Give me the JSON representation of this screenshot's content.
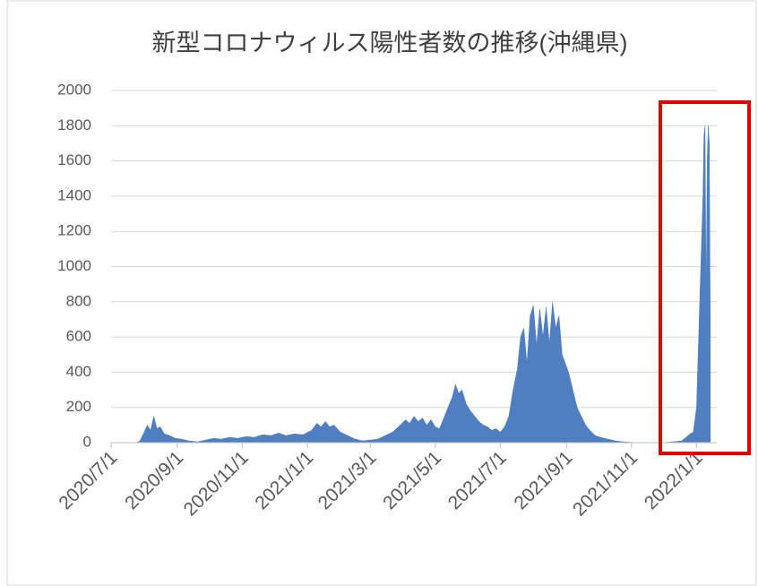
{
  "chart_data": {
    "type": "area",
    "title": "新型コロナウィルス陽性者数の推移(沖縄県)",
    "color": "#4f7fc0",
    "grid": true,
    "ylim": [
      0,
      2000
    ],
    "yticks": [
      0,
      200,
      400,
      600,
      800,
      1000,
      1200,
      1400,
      1600,
      1800,
      2000
    ],
    "xlim": [
      "2020-07-01",
      "2022-01-20"
    ],
    "xticks": [
      {
        "value": "2020-07-01",
        "label": "2020/7/1"
      },
      {
        "value": "2020-09-01",
        "label": "2020/9/1"
      },
      {
        "value": "2020-11-01",
        "label": "2020/11/1"
      },
      {
        "value": "2021-01-01",
        "label": "2021/1/1"
      },
      {
        "value": "2021-03-01",
        "label": "2021/3/1"
      },
      {
        "value": "2021-05-01",
        "label": "2021/5/1"
      },
      {
        "value": "2021-07-01",
        "label": "2021/7/1"
      },
      {
        "value": "2021-09-01",
        "label": "2021/9/1"
      },
      {
        "value": "2021-11-01",
        "label": "2021/11/1"
      },
      {
        "value": "2022-01-01",
        "label": "2022/1/1"
      }
    ],
    "x": [
      "2020-07-25",
      "2020-07-28",
      "2020-08-01",
      "2020-08-04",
      "2020-08-07",
      "2020-08-10",
      "2020-08-13",
      "2020-08-16",
      "2020-08-20",
      "2020-08-25",
      "2020-08-30",
      "2020-09-05",
      "2020-09-12",
      "2020-09-20",
      "2020-09-28",
      "2020-10-05",
      "2020-10-12",
      "2020-10-20",
      "2020-10-28",
      "2020-11-05",
      "2020-11-12",
      "2020-11-20",
      "2020-11-28",
      "2020-12-05",
      "2020-12-12",
      "2020-12-20",
      "2020-12-28",
      "2021-01-05",
      "2021-01-10",
      "2021-01-14",
      "2021-01-18",
      "2021-01-22",
      "2021-01-26",
      "2021-02-01",
      "2021-02-08",
      "2021-02-15",
      "2021-02-22",
      "2021-03-01",
      "2021-03-08",
      "2021-03-15",
      "2021-03-22",
      "2021-03-29",
      "2021-04-03",
      "2021-04-07",
      "2021-04-11",
      "2021-04-15",
      "2021-04-19",
      "2021-04-23",
      "2021-04-27",
      "2021-05-01",
      "2021-05-05",
      "2021-05-09",
      "2021-05-13",
      "2021-05-17",
      "2021-05-20",
      "2021-05-23",
      "2021-05-26",
      "2021-05-30",
      "2021-06-03",
      "2021-06-07",
      "2021-06-11",
      "2021-06-15",
      "2021-06-19",
      "2021-06-23",
      "2021-06-27",
      "2021-07-01",
      "2021-07-05",
      "2021-07-09",
      "2021-07-13",
      "2021-07-17",
      "2021-07-20",
      "2021-07-23",
      "2021-07-26",
      "2021-07-29",
      "2021-08-01",
      "2021-08-04",
      "2021-08-07",
      "2021-08-10",
      "2021-08-13",
      "2021-08-16",
      "2021-08-19",
      "2021-08-22",
      "2021-08-25",
      "2021-08-28",
      "2021-08-31",
      "2021-09-03",
      "2021-09-07",
      "2021-09-11",
      "2021-09-15",
      "2021-09-19",
      "2021-09-23",
      "2021-09-28",
      "2021-10-03",
      "2021-10-10",
      "2021-10-17",
      "2021-10-24",
      "2021-10-31",
      "2021-11-07",
      "2021-11-20",
      "2021-12-01",
      "2021-12-10",
      "2021-12-18",
      "2021-12-22",
      "2021-12-26",
      "2021-12-29",
      "2022-01-01",
      "2022-01-03",
      "2022-01-05",
      "2022-01-07",
      "2022-01-08",
      "2022-01-09",
      "2022-01-10",
      "2022-01-11",
      "2022-01-12",
      "2022-01-13",
      "2022-01-14"
    ],
    "values": [
      0,
      10,
      60,
      100,
      70,
      150,
      80,
      90,
      50,
      40,
      25,
      20,
      10,
      5,
      15,
      25,
      20,
      30,
      25,
      35,
      30,
      45,
      40,
      55,
      40,
      50,
      45,
      70,
      110,
      90,
      120,
      90,
      100,
      60,
      40,
      20,
      10,
      15,
      20,
      40,
      60,
      100,
      130,
      110,
      150,
      120,
      140,
      100,
      130,
      90,
      80,
      140,
      200,
      260,
      330,
      280,
      300,
      220,
      180,
      150,
      120,
      100,
      90,
      70,
      80,
      60,
      90,
      150,
      300,
      420,
      600,
      650,
      450,
      720,
      780,
      550,
      760,
      600,
      770,
      560,
      800,
      650,
      720,
      500,
      450,
      400,
      300,
      200,
      150,
      100,
      70,
      40,
      30,
      20,
      10,
      5,
      2,
      0,
      0,
      0,
      5,
      10,
      30,
      50,
      60,
      200,
      600,
      1000,
      1400,
      1750,
      1800,
      800,
      1600,
      1800,
      1700,
      600
    ]
  }
}
